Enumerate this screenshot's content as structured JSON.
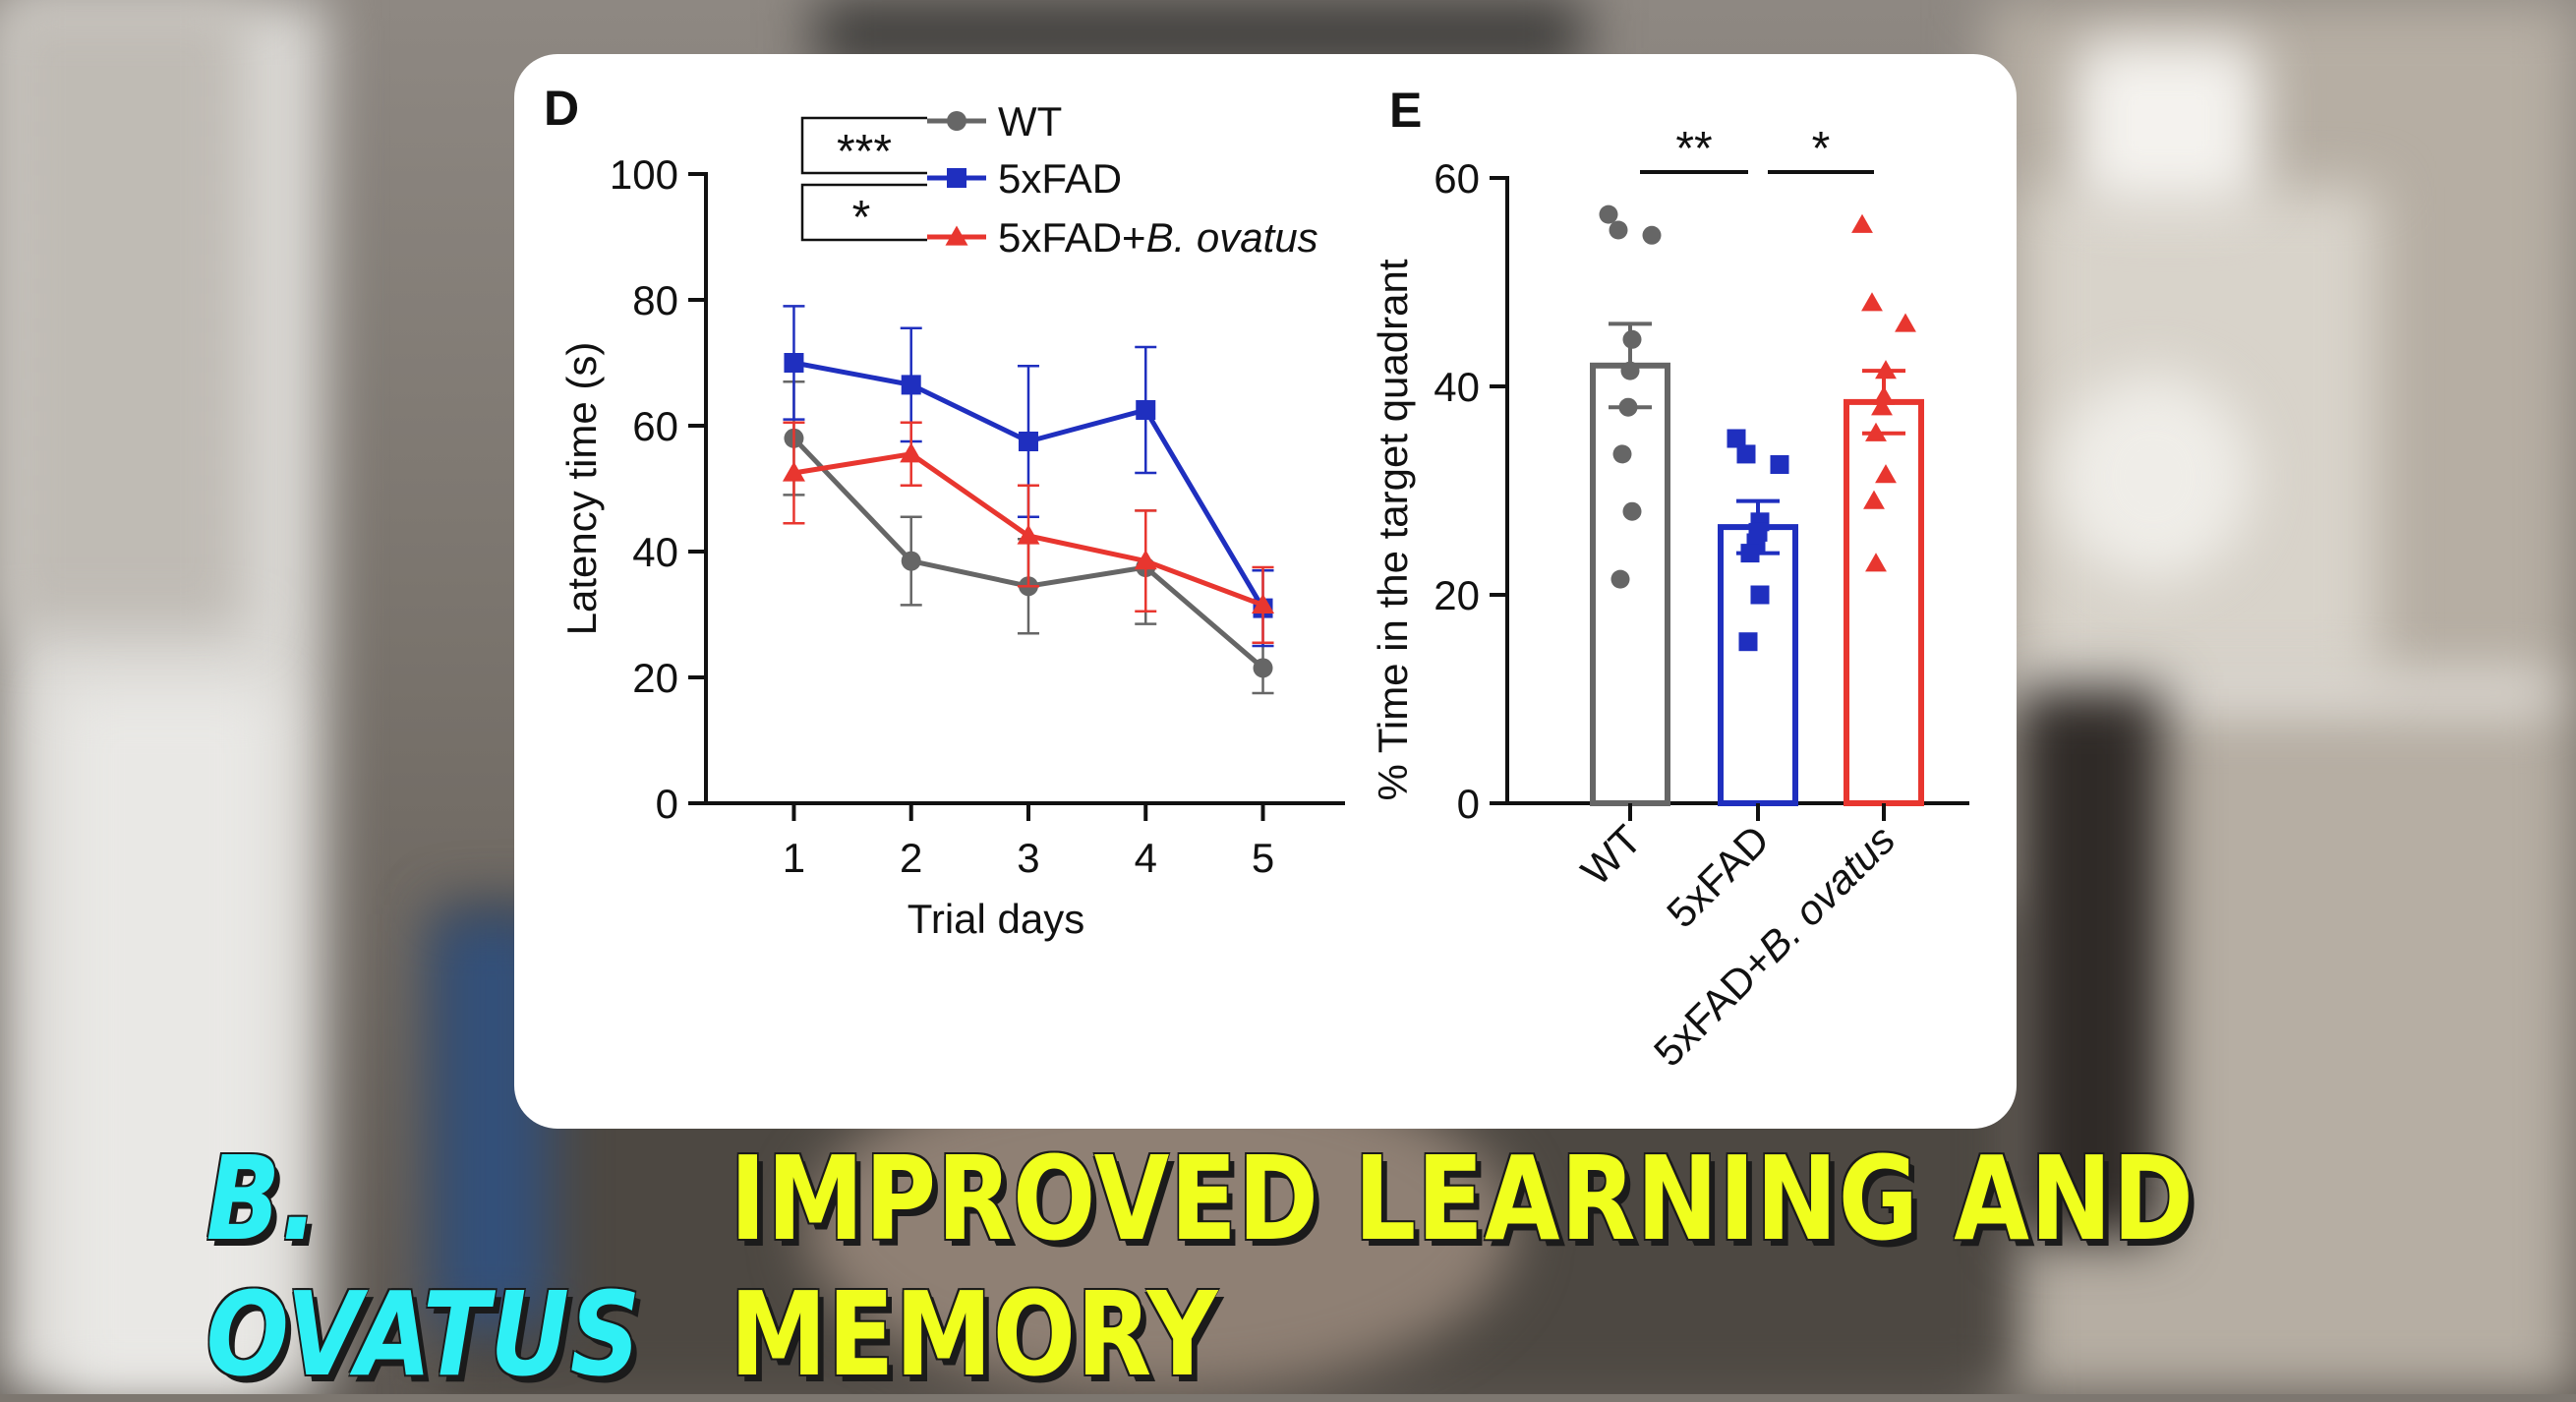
{
  "colors": {
    "wt": "#666666",
    "fad": "#1f2fbf",
    "ovatus": "#e8362f",
    "caption_species": "#2ff0f5",
    "caption_main": "#f0ff1e"
  },
  "caption": {
    "species": "B. OVATUS",
    "main": "IMPROVED LEARNING AND MEMORY"
  },
  "chart_data": [
    {
      "type": "line",
      "panel_label": "D",
      "xlabel": "Trial days",
      "ylabel": "Latency time (s)",
      "x": [
        1,
        2,
        3,
        4,
        5
      ],
      "xlim": [
        0.25,
        5.7
      ],
      "ylim": [
        0,
        100
      ],
      "yticks": [
        0,
        20,
        40,
        60,
        80,
        100
      ],
      "legend_position": "top",
      "series": [
        {
          "name": "WT",
          "marker": "circle",
          "values": [
            58,
            38.5,
            34.5,
            37.5,
            21.5
          ],
          "error": [
            9,
            7,
            7.5,
            9,
            4
          ]
        },
        {
          "name": "5xFAD",
          "marker": "square",
          "values": [
            70,
            66.5,
            57.5,
            62.5,
            31
          ],
          "error": [
            9,
            9,
            12,
            10,
            6
          ]
        },
        {
          "name_prefix": "5xFAD+",
          "name_italic": "B. ovatus",
          "marker": "triangle",
          "values": [
            52.5,
            55.5,
            42.5,
            38.5,
            31.5
          ],
          "error": [
            8,
            5,
            8,
            8,
            6
          ]
        }
      ],
      "significance": [
        "***",
        "*"
      ]
    },
    {
      "type": "bar",
      "panel_label": "E",
      "xlabel": "",
      "ylabel": "% Time  in the target quadrant",
      "ylim": [
        0,
        60
      ],
      "yticks": [
        0,
        20,
        40,
        60
      ],
      "categories": [
        "WT",
        "5xFAD",
        "5xFAD+B. ovatus"
      ],
      "tick_labels": [
        {
          "text": "WT"
        },
        {
          "text": "5xFAD"
        },
        {
          "prefix": "5xFAD+",
          "italic": "B. ovatus"
        }
      ],
      "values": [
        42,
        26.5,
        38.5
      ],
      "error": [
        4,
        2.5,
        3
      ],
      "points": [
        [
          56.5,
          55,
          54.5,
          44.5,
          41.5,
          38,
          33.5,
          28,
          21.5
        ],
        [
          35,
          33.5,
          32.5,
          27,
          26,
          25,
          24,
          20,
          15.5
        ],
        [
          55.5,
          48,
          46,
          41.5,
          39,
          38,
          35.5,
          31.5,
          29,
          23
        ]
      ],
      "significance": [
        {
          "label": "**",
          "from": 0,
          "to": 1
        },
        {
          "label": "*",
          "from": 1,
          "to": 2
        }
      ]
    }
  ]
}
